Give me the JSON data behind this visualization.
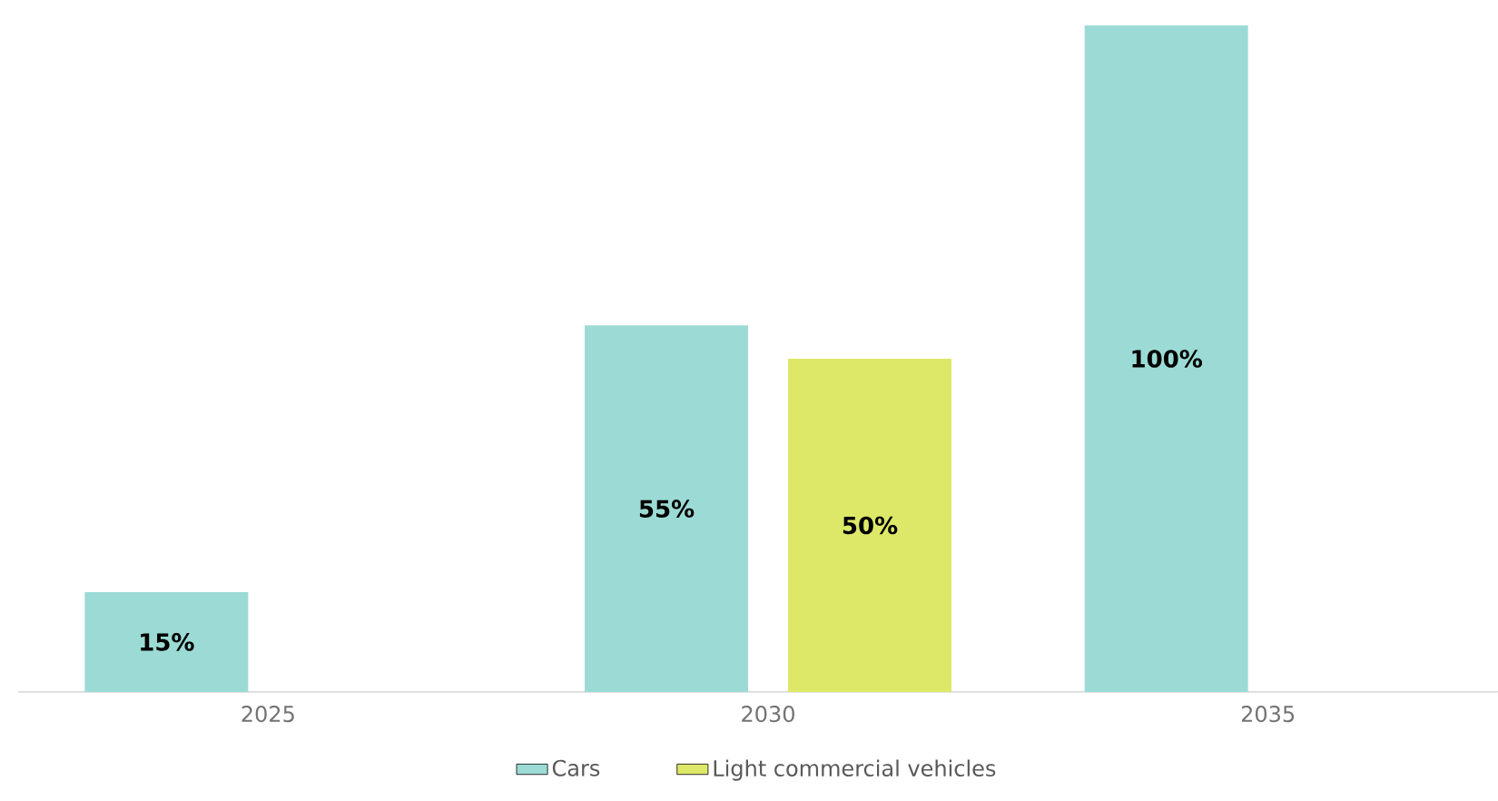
{
  "chart_data": {
    "type": "bar",
    "categories": [
      "2025",
      "2030",
      "2035"
    ],
    "series": [
      {
        "name": "Cars",
        "color": "#9cdbd5",
        "values": [
          15,
          55,
          100
        ],
        "value_labels": [
          "15%",
          "55%",
          "100%"
        ]
      },
      {
        "name": "Light commercial vehicles",
        "color": "#dee868",
        "values": [
          null,
          50,
          null
        ],
        "value_labels": [
          null,
          "50%",
          null
        ]
      }
    ],
    "legend": "bottom",
    "grid": false
  }
}
